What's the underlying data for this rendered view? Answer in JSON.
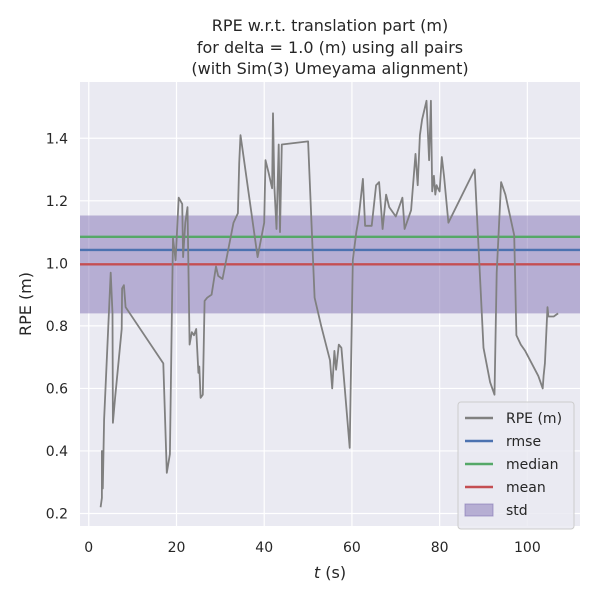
{
  "chart_data": {
    "type": "line",
    "title": [
      "RPE w.r.t. translation part (m)",
      "for delta = 1.0 (m) using all pairs",
      "(with Sim(3) Umeyama alignment)"
    ],
    "xlabel_var": "t",
    "xlabel_unit": " (s)",
    "ylabel": "RPE (m)",
    "xlim": [
      -2,
      112
    ],
    "ylim": [
      0.16,
      1.58
    ],
    "xticks": [
      0,
      20,
      40,
      60,
      80,
      100
    ],
    "yticks": [
      0.2,
      0.4,
      0.6,
      0.8,
      1.0,
      1.2,
      1.4
    ],
    "xtick_labels": [
      "0",
      "20",
      "40",
      "60",
      "80",
      "100"
    ],
    "ytick_labels": [
      "0.2",
      "0.4",
      "0.6",
      "0.8",
      "1.0",
      "1.2",
      "1.4"
    ],
    "grid": true,
    "legend_position": "lower-right",
    "series": [
      {
        "name": "RPE (m)",
        "kind": "line",
        "color": "#808080",
        "x": [
          2.7,
          3.0,
          3.0,
          3.2,
          3.5,
          5.0,
          5.4,
          5.5,
          6.0,
          7.5,
          7.6,
          8.0,
          8.4,
          17.0,
          17.8,
          18.5,
          19.0,
          19.2,
          19.8,
          20.5,
          21.3,
          21.5,
          22.0,
          22.5,
          23.0,
          23.5,
          24.0,
          24.5,
          25.0,
          25.2,
          25.5,
          26.0,
          26.4,
          27.0,
          28.0,
          29.0,
          29.5,
          30.5,
          33.0,
          34.0,
          34.3,
          34.6,
          35.0,
          38.5,
          40.0,
          40.3,
          41.0,
          41.8,
          42.0,
          42.3,
          42.8,
          43.3,
          43.6,
          44.0,
          50.0,
          51.5,
          53.0,
          55.0,
          55.5,
          56.0,
          56.4,
          57.0,
          57.6,
          59.5,
          60.2,
          61.0,
          61.5,
          62.5,
          63.0,
          64.5,
          65.5,
          66.2,
          67.0,
          67.8,
          68.5,
          70.0,
          71.5,
          72.0,
          73.5,
          74.5,
          75.0,
          75.5,
          76.0,
          77.0,
          77.6,
          78.0,
          78.3,
          78.7,
          79.0,
          79.3,
          79.6,
          80.0,
          80.5,
          81.0,
          82.0,
          88.0,
          90.0,
          91.5,
          92.5,
          93.0,
          94.0,
          95.0,
          97.0,
          97.5,
          98.5,
          99.5,
          102.5,
          103.5,
          103.7,
          104.0,
          104.6,
          104.8,
          105.3,
          106.0,
          107.0
        ],
        "y": [
          0.22,
          0.25,
          0.4,
          0.28,
          0.5,
          0.97,
          0.84,
          0.49,
          0.57,
          0.79,
          0.92,
          0.93,
          0.86,
          0.68,
          0.33,
          0.39,
          0.89,
          1.08,
          1.01,
          1.21,
          1.19,
          1.02,
          1.13,
          1.18,
          0.74,
          0.78,
          0.77,
          0.79,
          0.65,
          0.67,
          0.57,
          0.58,
          0.88,
          0.89,
          0.9,
          0.99,
          0.96,
          0.95,
          1.13,
          1.16,
          1.32,
          1.41,
          1.37,
          1.02,
          1.13,
          1.33,
          1.29,
          1.24,
          1.48,
          1.25,
          1.11,
          1.38,
          1.1,
          1.38,
          1.39,
          0.89,
          0.8,
          0.69,
          0.6,
          0.72,
          0.66,
          0.74,
          0.73,
          0.41,
          1.01,
          1.1,
          1.14,
          1.27,
          1.12,
          1.12,
          1.25,
          1.26,
          1.11,
          1.22,
          1.18,
          1.15,
          1.21,
          1.11,
          1.17,
          1.35,
          1.25,
          1.41,
          1.46,
          1.52,
          1.33,
          1.52,
          1.23,
          1.28,
          1.22,
          1.25,
          1.24,
          1.23,
          1.34,
          1.28,
          1.13,
          1.3,
          0.73,
          0.62,
          0.58,
          0.97,
          1.26,
          1.22,
          1.09,
          0.77,
          0.74,
          0.72,
          0.64,
          0.6,
          0.64,
          0.68,
          0.86,
          0.83,
          0.83,
          0.83,
          0.84
        ]
      },
      {
        "name": "rmse",
        "kind": "hline",
        "color": "#4c72b0",
        "value": 1.043
      },
      {
        "name": "median",
        "kind": "hline",
        "color": "#55a868",
        "value": 1.085
      },
      {
        "name": "mean",
        "kind": "hline",
        "color": "#c44e52",
        "value": 0.997
      },
      {
        "name": "std",
        "kind": "band",
        "color": "#8172b3",
        "alpha": 0.5,
        "lower": 0.84,
        "upper": 1.153
      }
    ]
  },
  "theme": {
    "plot_background": "#eaeaf2",
    "grid_color": "#ffffff",
    "text_color": "#262626"
  }
}
